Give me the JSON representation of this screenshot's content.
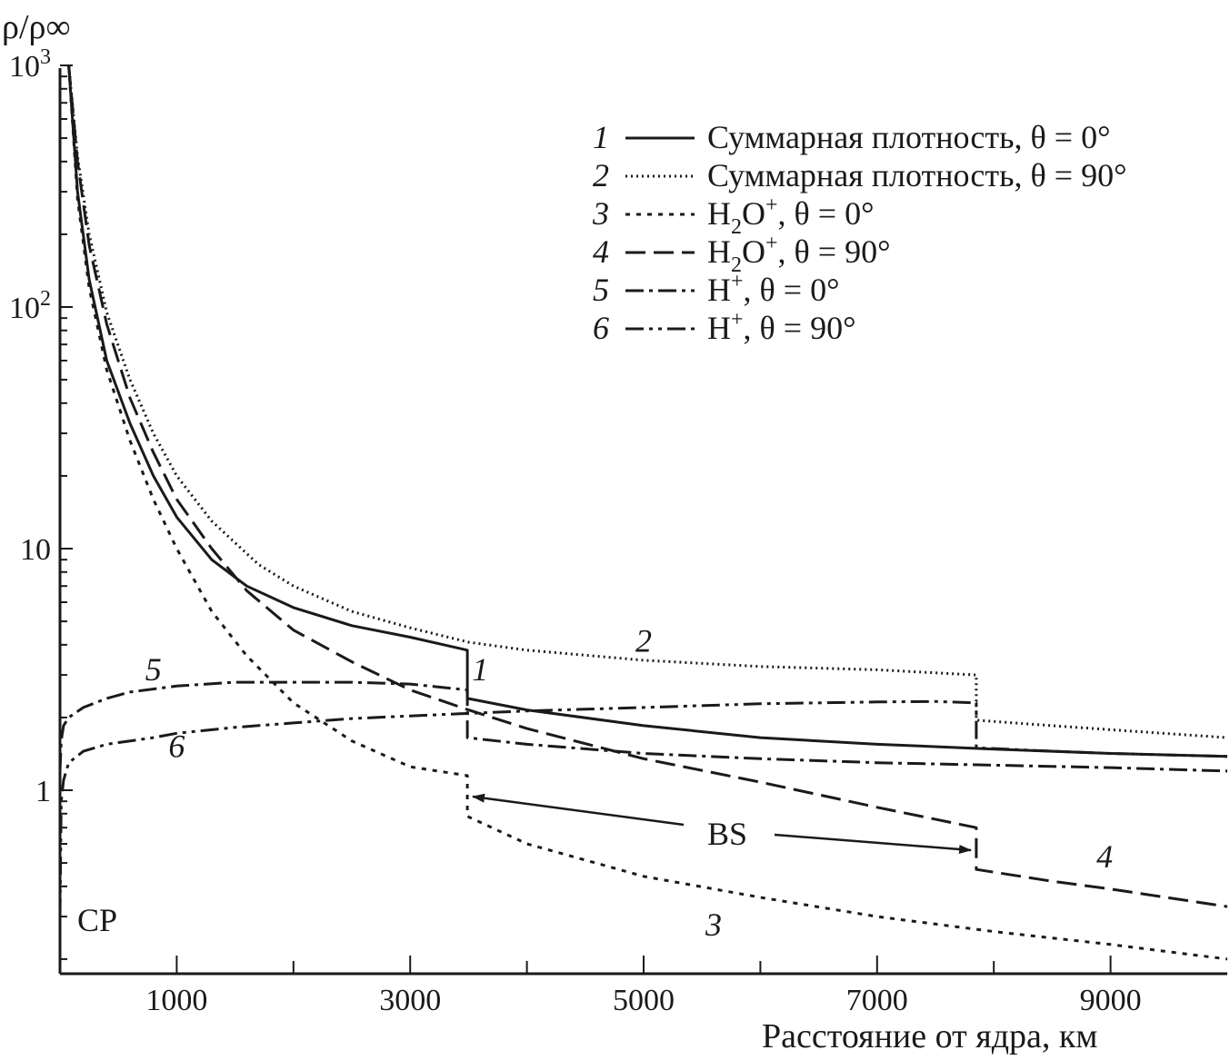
{
  "chart_data": {
    "type": "line",
    "title": "",
    "ylabel": "ρ/ρ∞",
    "xlabel": "Расстояние от ядра, км",
    "xlim": [
      0,
      10000
    ],
    "ylim": [
      0.2,
      1000
    ],
    "yscale": "log",
    "x_ticks": [
      1000,
      3000,
      5000,
      7000,
      9000
    ],
    "x_tick_labels": [
      "1000",
      "3000",
      "5000",
      "7000",
      "9000"
    ],
    "y_tick_labels": [
      {
        "value": 1000,
        "base": "10",
        "exp": "3"
      },
      {
        "value": 100,
        "base": "10",
        "exp": "2"
      },
      {
        "value": 10,
        "base": "10",
        "exp": ""
      },
      {
        "value": 1,
        "base": "1",
        "exp": ""
      }
    ],
    "series": [
      {
        "id": "1",
        "name": "Суммарная плотность, θ = 0°",
        "dash": "",
        "x": [
          75,
          150,
          250,
          400,
          600,
          800,
          1000,
          1300,
          1600,
          2000,
          2500,
          3000,
          3490,
          3490,
          4000,
          5000,
          6000,
          7000,
          8000,
          9000,
          10000
        ],
        "y": [
          1000,
          300,
          130,
          60,
          33,
          20,
          13.5,
          9,
          7,
          5.7,
          4.8,
          4.3,
          3.8,
          2.4,
          2.15,
          1.85,
          1.65,
          1.55,
          1.48,
          1.42,
          1.38
        ]
      },
      {
        "id": "2",
        "name": "Суммарная плотность, θ = 90°",
        "dash": "2 4",
        "x": [
          75,
          150,
          250,
          400,
          600,
          800,
          1000,
          1300,
          1700,
          2000,
          2500,
          3000,
          3500,
          4000,
          5000,
          6000,
          7000,
          7850,
          7850,
          8500,
          9000,
          10000
        ],
        "y": [
          1000,
          420,
          200,
          95,
          50,
          30,
          20,
          13,
          8.6,
          7,
          5.5,
          4.7,
          4.1,
          3.8,
          3.45,
          3.25,
          3.15,
          3.0,
          1.95,
          1.85,
          1.78,
          1.65
        ]
      },
      {
        "id": "3",
        "name": "H2O+, θ = 0°",
        "dash": "5 7",
        "x": [
          75,
          150,
          250,
          400,
          600,
          800,
          1000,
          1300,
          1600,
          2000,
          2500,
          3000,
          3490,
          3490,
          4000,
          5000,
          6000,
          7000,
          8000,
          9000,
          10000
        ],
        "y": [
          1000,
          280,
          120,
          55,
          28,
          16,
          10,
          5.5,
          3.6,
          2.3,
          1.6,
          1.25,
          1.15,
          0.78,
          0.6,
          0.44,
          0.36,
          0.3,
          0.26,
          0.23,
          0.2
        ]
      },
      {
        "id": "4",
        "name": "H2O+, θ = 90°",
        "dash": "22 9",
        "x": [
          75,
          150,
          250,
          400,
          600,
          800,
          1000,
          1300,
          1600,
          2000,
          2500,
          3000,
          3500,
          4000,
          5000,
          6000,
          7000,
          7850,
          7850,
          8500,
          9000,
          10000
        ],
        "y": [
          1000,
          400,
          180,
          85,
          42,
          25,
          16,
          10,
          6.7,
          4.6,
          3.4,
          2.6,
          2.15,
          1.8,
          1.35,
          1.08,
          0.85,
          0.7,
          0.47,
          0.42,
          0.39,
          0.33
        ]
      },
      {
        "id": "5",
        "name": "H+, θ = 0°",
        "dash": "20 6 4 6",
        "x": [
          0,
          10,
          30,
          75,
          200,
          400,
          600,
          1000,
          1500,
          2000,
          2500,
          3000,
          3490,
          3490,
          4000,
          5000,
          6000,
          7000,
          8000,
          9000,
          10000
        ],
        "y": [
          1.2,
          1.6,
          1.85,
          2.0,
          2.2,
          2.4,
          2.55,
          2.7,
          2.8,
          2.8,
          2.8,
          2.75,
          2.6,
          1.65,
          1.55,
          1.42,
          1.35,
          1.3,
          1.27,
          1.24,
          1.2
        ]
      },
      {
        "id": "6",
        "name": "H+, θ = 90°",
        "dash": "20 6 4 6 4 6",
        "x": [
          0,
          10,
          30,
          75,
          200,
          400,
          800,
          1000,
          1500,
          2000,
          2500,
          3000,
          3500,
          4000,
          5000,
          6000,
          7000,
          7500,
          7850,
          7850,
          8500,
          9000,
          10000
        ],
        "y": [
          0.3,
          0.9,
          1.1,
          1.3,
          1.45,
          1.55,
          1.65,
          1.72,
          1.82,
          1.9,
          1.98,
          2.03,
          2.08,
          2.13,
          2.2,
          2.28,
          2.32,
          2.33,
          2.3,
          1.5,
          1.45,
          1.42,
          1.38
        ]
      }
    ],
    "curve_labels": [
      {
        "text": "1",
        "x": 3600,
        "y": 2.85
      },
      {
        "text": "2",
        "x": 5000,
        "y": 3.75
      },
      {
        "text": "3",
        "x": 5600,
        "y": 0.25
      },
      {
        "text": "4",
        "x": 8950,
        "y": 0.48
      },
      {
        "text": "5",
        "x": 800,
        "y": 2.85
      },
      {
        "text": "6",
        "x": 1000,
        "y": 1.37
      }
    ],
    "annotations": {
      "bow_shock_label": "BS",
      "bow_shock_positions": [
        3500,
        7850
      ],
      "contact_surface_label": "CP"
    },
    "legend": {
      "placement": "top-right",
      "entries": [
        {
          "num": "1",
          "text": "Суммарная плотность, θ = 0°"
        },
        {
          "num": "2",
          "text": "Суммарная плотность, θ = 90°"
        },
        {
          "num": "3",
          "pre": "H",
          "sub": "2",
          "mid": "O",
          "sup": "+",
          "post": ", θ = 0°"
        },
        {
          "num": "4",
          "pre": "H",
          "sub": "2",
          "mid": "O",
          "sup": "+",
          "post": ", θ = 90°"
        },
        {
          "num": "5",
          "pre": "H",
          "sub": "",
          "mid": "",
          "sup": "+",
          "post": ", θ = 0°"
        },
        {
          "num": "6",
          "pre": "H",
          "sub": "",
          "mid": "",
          "sup": "+",
          "post": ", θ = 90°"
        }
      ]
    }
  }
}
